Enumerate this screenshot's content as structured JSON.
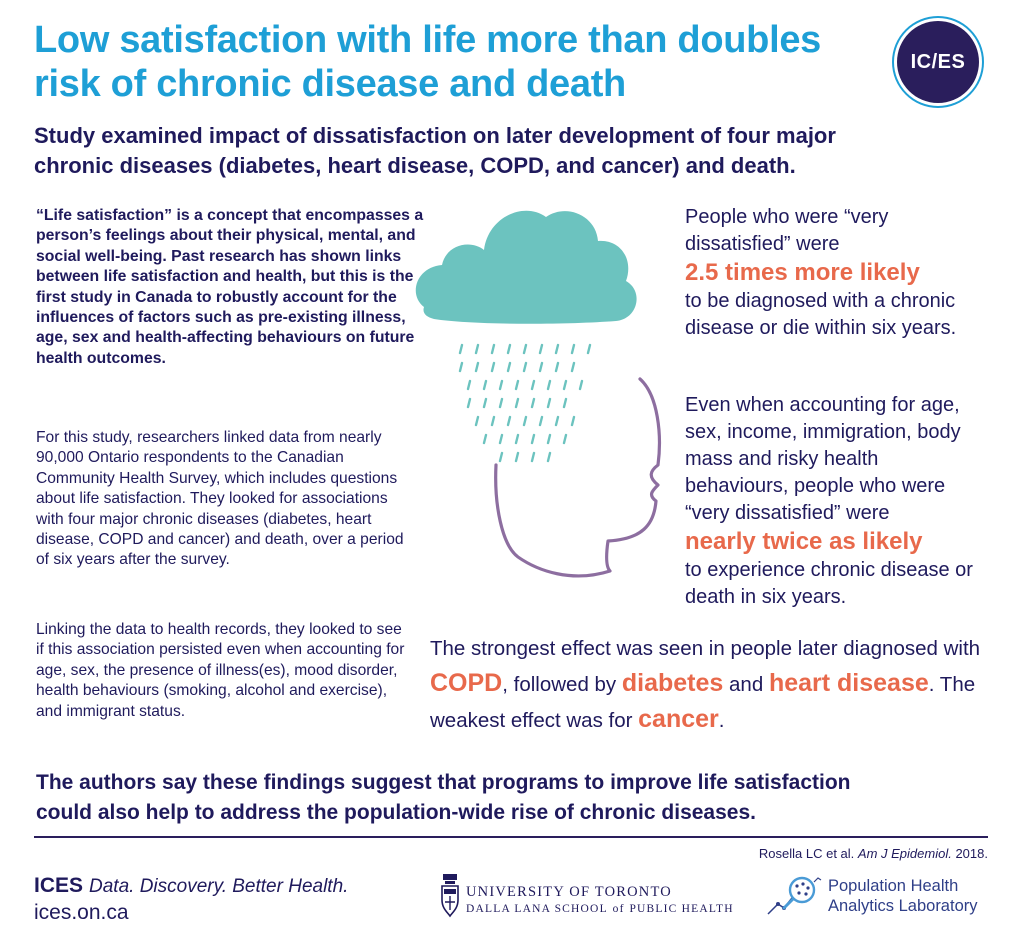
{
  "header": {
    "title_line1": "Low satisfaction with life more than doubles",
    "title_line2": "risk of chronic disease and death",
    "logo_text": "IC/ES"
  },
  "subtitle": {
    "line1": "Study examined impact of dissatisfaction on later development of four major",
    "line2": "chronic diseases (diabetes, heart disease, COPD, and cancer) and death."
  },
  "left_column": {
    "intro_bold": "“Life satisfaction” is a concept that encompasses a person’s feelings about their physical, mental, and social well-being. Past research has shown links between life satisfaction and health, but this is the first study in Canada to robustly account for the influences of factors such as pre-existing illness, age, sex and health-affecting behaviours on future health outcomes.",
    "paragraph_1": "For this study, researchers linked data from nearly 90,000 Ontario respondents to the Canadian Community Health Survey, which includes questions about life satisfaction. They looked for associations with four major chronic diseases (diabetes, heart disease, COPD and cancer) and death, over a period of six years after the survey.",
    "paragraph_2": "Linking the data to health records, they looked to see if this association persisted even when accounting for age, sex, the presence of illness(es), mood disorder, health behaviours (smoking, alcohol and exercise), and immigrant status."
  },
  "right_column": {
    "stat1_before": "People who were “very dissatisfied” were",
    "stat1_highlight": "2.5 times more likely",
    "stat1_after": "to be diagnosed with a chronic disease or die within six years.",
    "stat2_before": "Even when accounting for age, sex, income, immigration, body mass and risky health behaviours, people who were “very dissatisfied” were",
    "stat2_highlight": "nearly twice as likely",
    "stat2_after": "to experience chronic disease or death in six years."
  },
  "effects": {
    "intro": "The strongest effect was seen in people later diagnosed with",
    "copd": "COPD",
    "followed_by": ", followed by",
    "diabetes": "diabetes",
    "and": "and",
    "heart_disease": "heart disease",
    "weakest": ".  The weakest effect was for",
    "cancer": "cancer",
    "end": "."
  },
  "conclusion": {
    "line1": "The authors say these findings suggest that programs to improve life satisfaction",
    "line2": "could also help to address the population-wide rise of chronic diseases."
  },
  "citation": {
    "authors": "Rosella LC et al.",
    "journal": "Am J Epidemiol.",
    "year": "2018."
  },
  "footer": {
    "brand": "ICES",
    "tagline": "Data. Discovery. Better Health.",
    "url": "ices.on.ca",
    "uoft_line1": "UNIVERSITY OF TORONTO",
    "uoft_line2_a": "DALLA LANA SCHOOL",
    "uoft_line2_of": "of",
    "uoft_line2_b": "PUBLIC HEALTH",
    "phal_line1": "Population Health",
    "phal_line2": "Analytics Laboratory"
  },
  "colors": {
    "title_blue": "#1e9fd6",
    "navy": "#1f1a5c",
    "highlight_orange": "#e8694b",
    "cloud_teal": "#6cc3bf",
    "face_purple": "#8d6ea0"
  },
  "icons": [
    "ices-logo-icon",
    "rain-cloud-icon",
    "face-profile-icon",
    "uoft-crest-icon",
    "network-magnifier-icon"
  ]
}
